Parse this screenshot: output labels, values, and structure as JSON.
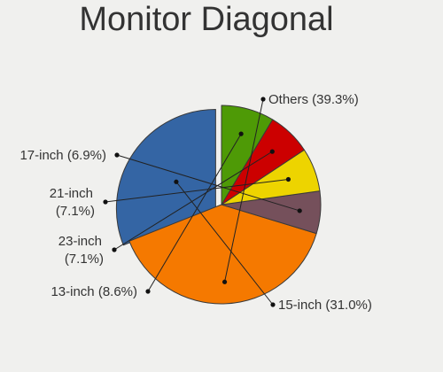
{
  "chart_data": {
    "type": "pie",
    "title": "Monitor Diagonal",
    "legend": "none",
    "slices": [
      {
        "label": "15-inch",
        "pct_label": "(31.0%)",
        "value": 31.0,
        "color": "#3465a4",
        "exploded": true
      },
      {
        "label": "Others",
        "pct_label": "(39.3%)",
        "value": 39.3,
        "color": "#f57900",
        "exploded": false
      },
      {
        "label": "17-inch",
        "pct_label": "(6.9%)",
        "value": 6.9,
        "color": "#75505b",
        "exploded": false
      },
      {
        "label": "21-inch",
        "pct_label": "(7.1%)",
        "value": 7.1,
        "color": "#edd400",
        "exploded": false
      },
      {
        "label": "23-inch",
        "pct_label": "(7.1%)",
        "value": 7.1,
        "color": "#cc0000",
        "exploded": false
      },
      {
        "label": "13-inch",
        "pct_label": "(8.6%)",
        "value": 8.6,
        "color": "#4e9a06",
        "exploded": false
      }
    ]
  }
}
